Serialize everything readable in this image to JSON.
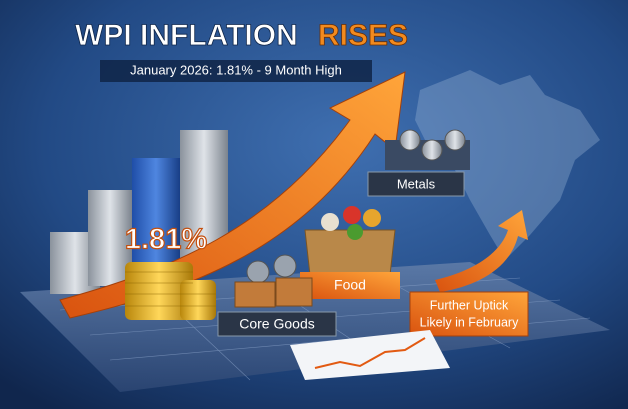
{
  "header": {
    "title_main": "WPI INFLATION",
    "title_accent": "RISES",
    "subtitle": "January 2026: 1.81% - 9 Month High"
  },
  "highlight": "1.81%",
  "labels": {
    "metals": "Metals",
    "food": "Food",
    "core_goods": "Core Goods",
    "outlook_line1": "Further Uptick",
    "outlook_line2": "Likely in February"
  }
}
